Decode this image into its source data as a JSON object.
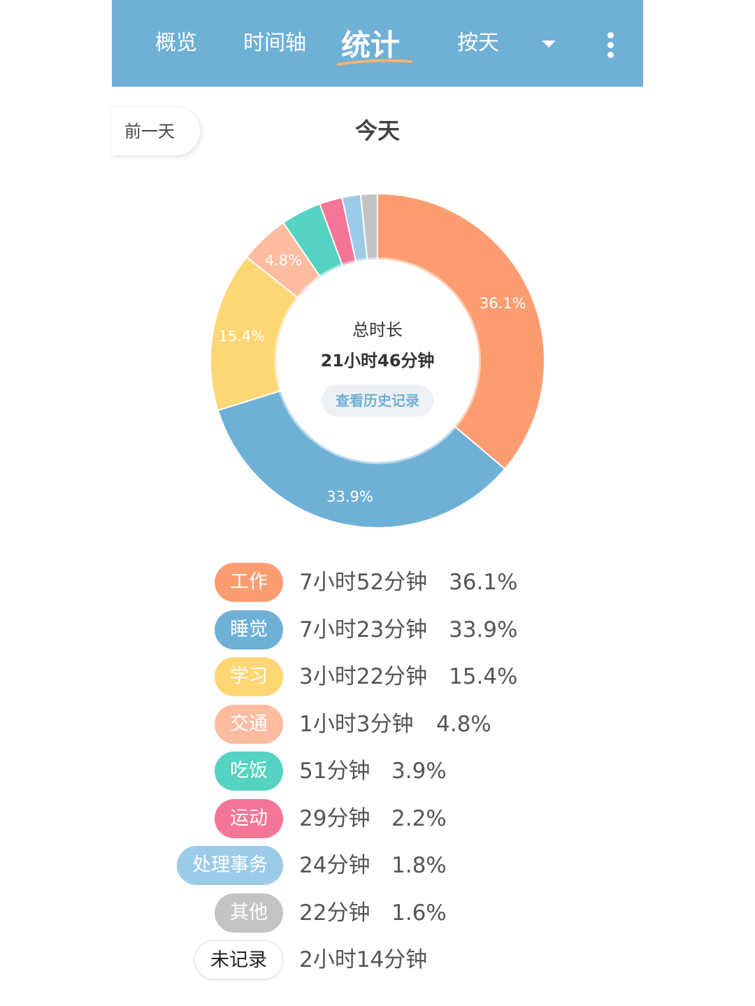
{
  "header": {
    "tabs": [
      {
        "label": "概览",
        "active": false
      },
      {
        "label": "时间轴",
        "active": false
      },
      {
        "label": "统计",
        "active": true
      },
      {
        "label": "按天",
        "active": false
      }
    ],
    "dropdown_icon": "chevron-down-icon",
    "more_icon": "more-vertical-icon",
    "background_color": "#6fb0d6",
    "underline_color": "#f6b36f"
  },
  "nav": {
    "prev_label": "前一天",
    "day_title": "今天"
  },
  "summary": {
    "total_label": "总时长",
    "total_value": "21小时46分钟",
    "history_label": "查看历史记录"
  },
  "chart_data": {
    "type": "pie",
    "donut": true,
    "categories": [
      "工作",
      "睡觉",
      "学习",
      "交通",
      "吃饭",
      "运动",
      "处理事务",
      "其他"
    ],
    "values": [
      36.1,
      33.9,
      15.4,
      4.8,
      3.9,
      2.2,
      1.8,
      1.6
    ],
    "data_labels": [
      "36.1%",
      "33.9%",
      "15.4%",
      "4.8%",
      "",
      "",
      "",
      ""
    ],
    "colors": [
      "#fb9d71",
      "#6fb0d6",
      "#fed674",
      "#fdbba0",
      "#55d2c1",
      "#f47596",
      "#9ccbe7",
      "#c3c3c3"
    ]
  },
  "legend": [
    {
      "label": "工作",
      "duration": "7小时52分钟",
      "percent": "36.1%",
      "color": "#fb9d71"
    },
    {
      "label": "睡觉",
      "duration": "7小时23分钟",
      "percent": "33.9%",
      "color": "#6fb0d6"
    },
    {
      "label": "学习",
      "duration": "3小时22分钟",
      "percent": "15.4%",
      "color": "#fed674"
    },
    {
      "label": "交通",
      "duration": "1小时3分钟",
      "percent": "4.8%",
      "color": "#fdbba0"
    },
    {
      "label": "吃饭",
      "duration": "51分钟",
      "percent": "3.9%",
      "color": "#55d2c1"
    },
    {
      "label": "运动",
      "duration": "29分钟",
      "percent": "2.2%",
      "color": "#f47596"
    },
    {
      "label": "处理事务",
      "duration": "24分钟",
      "percent": "1.8%",
      "color": "#9ccbe7"
    },
    {
      "label": "其他",
      "duration": "22分钟",
      "percent": "1.6%",
      "color": "#c3c3c3"
    },
    {
      "label": "未记录",
      "duration": "2小时14分钟",
      "percent": "",
      "color": "#ffffff"
    }
  ]
}
